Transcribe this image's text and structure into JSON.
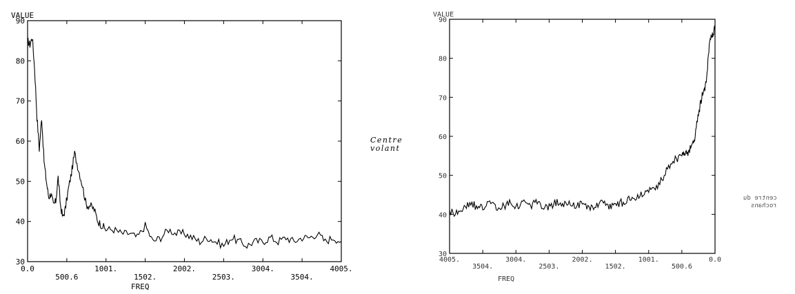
{
  "chart_data": [
    {
      "type": "line",
      "ylabel": "VALUE",
      "xlabel": "FREQ",
      "xlim": [
        0,
        4005
      ],
      "ylim": [
        30,
        90
      ],
      "x_ticks": [
        "0.0",
        "500.6",
        "1001.",
        "1502.",
        "2002.",
        "2503.",
        "3004.",
        "3504.",
        "4005."
      ],
      "x_tick_values": [
        0,
        500.6,
        1001,
        1502,
        2002,
        2503,
        3004,
        3504,
        4005
      ],
      "y_ticks": [
        "30",
        "40",
        "50",
        "60",
        "70",
        "80",
        "90"
      ],
      "y_tick_values": [
        30,
        40,
        50,
        60,
        70,
        80,
        90
      ],
      "grid": false,
      "series": [
        {
          "x": [
            0,
            30,
            60,
            90,
            120,
            150,
            180,
            210,
            240,
            270,
            300,
            330,
            360,
            390,
            420,
            450,
            480,
            520,
            560,
            600,
            650,
            700,
            750,
            800,
            850,
            900,
            950,
            1001,
            1100,
            1200,
            1300,
            1400,
            1502,
            1600,
            1700,
            1800,
            1900,
            2002,
            2100,
            2200,
            2300,
            2400,
            2503,
            2600,
            2700,
            2800,
            2900,
            3004,
            3100,
            3200,
            3300,
            3400,
            3504,
            3600,
            3700,
            3800,
            3900,
            4005
          ],
          "y": [
            85,
            84,
            86,
            78,
            66,
            58,
            66,
            55,
            50,
            46,
            47,
            44,
            45,
            51,
            44,
            41,
            43,
            48,
            52,
            57,
            53,
            49,
            44,
            44,
            43,
            40,
            39,
            38,
            38,
            37,
            37,
            36,
            39,
            35,
            36,
            38,
            37,
            37,
            36,
            35,
            36,
            35,
            34,
            36,
            35,
            34,
            35,
            35,
            36,
            35,
            36,
            35,
            36,
            36,
            37,
            35,
            36,
            35
          ]
        }
      ]
    },
    {
      "type": "line",
      "ylabel": "VALUE",
      "xlabel": "FREQ",
      "mirrored": true,
      "xlim": [
        0,
        4005
      ],
      "ylim": [
        30,
        90
      ],
      "y_ticks": [
        "90",
        "80",
        "70",
        "60",
        "50",
        "40",
        "30"
      ],
      "y_tick_values": [
        90,
        80,
        70,
        60,
        50,
        40,
        30
      ],
      "x_ticks": [
        "0.0",
        "500.6",
        "1001.",
        "1502.",
        "2002.",
        "2503.",
        "3004.",
        "3504.",
        "4005."
      ],
      "x_tick_values": [
        0,
        500.6,
        1001,
        1502,
        2002,
        2503,
        3004,
        3504,
        4005
      ],
      "grid": false,
      "series": [
        {
          "x": [
            0,
            40,
            80,
            120,
            160,
            200,
            250,
            300,
            350,
            400,
            450,
            500,
            600,
            700,
            800,
            900,
            1001,
            1100,
            1200,
            1300,
            1400,
            1502,
            1600,
            1700,
            1800,
            1900,
            2002,
            2100,
            2200,
            2300,
            2400,
            2503,
            2600,
            2700,
            2800,
            2900,
            3004,
            3100,
            3200,
            3300,
            3400,
            3504,
            3600,
            3700,
            3800,
            3900,
            4005
          ],
          "y": [
            88,
            86,
            85,
            76,
            72,
            70,
            66,
            60,
            58,
            56,
            56,
            55,
            54,
            52,
            49,
            47,
            46,
            45,
            44,
            44,
            43,
            43,
            42,
            43,
            42,
            42,
            43,
            42,
            43,
            42,
            43,
            42,
            42,
            43,
            42,
            43,
            42,
            43,
            42,
            42,
            43,
            42,
            42,
            43,
            42,
            40,
            41
          ]
        }
      ]
    }
  ],
  "annotations": {
    "centre_line1": "Centre",
    "centre_line2": "volant",
    "right_note_line1": "centre du",
    "right_note_line2": "rochans"
  }
}
